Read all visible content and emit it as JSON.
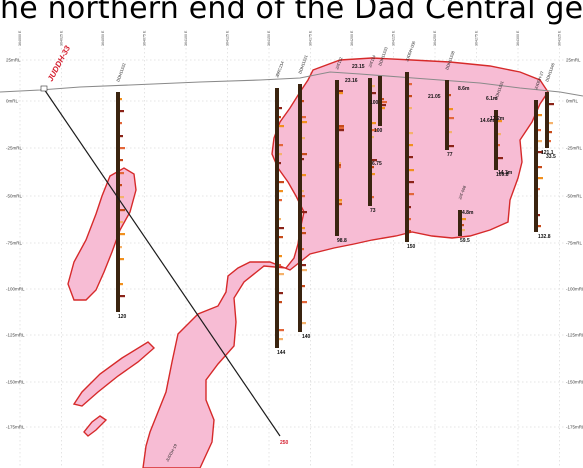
{
  "banner": "he northern end of the Dad Central geo",
  "levels": [
    "25mRL",
    "0mRL",
    "-25mRL",
    "-50mRL",
    "-75mRL",
    "-100mRL",
    "-125mRL",
    "-150mRL",
    "-175mRL"
  ],
  "eastings": [
    "364000 E",
    "364025 E",
    "364050 E",
    "364075 E",
    "364100 E",
    "364125 E",
    "364150 E",
    "364175 E",
    "364200 E",
    "364225 E",
    "364250 E",
    "364275 E",
    "364300 E",
    "364325 E"
  ],
  "highlight_hole": {
    "collar": "JUDDH-33",
    "depth": "250"
  },
  "holes": [
    {
      "collar": "DDH11332",
      "depth": "120"
    },
    {
      "collar": "JBRC214",
      "depth": "144"
    },
    {
      "collar": "DDH11321",
      "depth": "140"
    },
    {
      "collar": "JAT112",
      "depth": "98.8"
    },
    {
      "collar": "JAT114",
      "depth": "73"
    },
    {
      "collar": "DDH11333",
      "depth": "100"
    },
    {
      "collar": "JUDDH-006",
      "depth": "150"
    },
    {
      "collar": "DDH11338",
      "depth": "77"
    },
    {
      "collar": "JAT-008",
      "depth": "59.5"
    },
    {
      "collar": "DDH11331",
      "depth": "109.8"
    },
    {
      "collar": "JUDDH-27",
      "depth": "132.8"
    },
    {
      "collar": "DDH11346",
      "depth": "121.1"
    }
  ],
  "intercepts": [
    "23.15",
    "23.16",
    "6.75",
    "17.2m",
    "21.05",
    "8.6m",
    "6.1m",
    "14.6m",
    "4.8m",
    "14.3m",
    "33.5",
    "100"
  ],
  "other_labels": [
    "JUDDH-19"
  ]
}
